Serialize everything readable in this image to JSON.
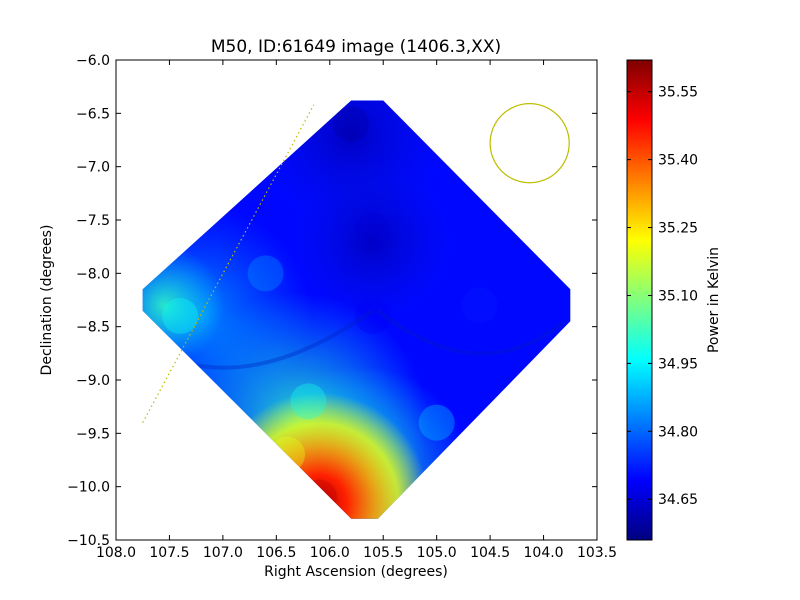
{
  "chart_data": {
    "type": "heatmap",
    "title": "M50, ID:61649 image (1406.3,XX)",
    "xlabel": "Right Ascension (degrees)",
    "ylabel": "Declination (degrees)",
    "xlim": [
      108.0,
      103.5
    ],
    "ylim": [
      -10.5,
      -6.0
    ],
    "x_ticks": [
      "108.0",
      "107.5",
      "107.0",
      "106.5",
      "106.0",
      "105.5",
      "105.0",
      "104.5",
      "104.0",
      "103.5"
    ],
    "y_ticks": [
      "−6.0",
      "−6.5",
      "−7.0",
      "−7.5",
      "−8.0",
      "−8.5",
      "−9.0",
      "−9.5",
      "−10.0",
      "−10.5"
    ],
    "colorbar": {
      "label": "Power in Kelvin",
      "range": [
        34.56,
        35.62
      ],
      "ticks": [
        "35.55",
        "35.40",
        "35.25",
        "35.10",
        "34.95",
        "34.80",
        "34.65"
      ],
      "colormap": "jet"
    },
    "map_footprint": [
      [
        105.8,
        -6.38
      ],
      [
        105.5,
        -6.38
      ],
      [
        103.75,
        -8.15
      ],
      [
        103.75,
        -8.45
      ],
      [
        105.55,
        -10.3
      ],
      [
        105.8,
        -10.3
      ],
      [
        107.75,
        -8.35
      ],
      [
        107.75,
        -8.15
      ],
      [
        105.8,
        -6.38
      ]
    ],
    "circle_marker": {
      "center": [
        104.13,
        -6.78
      ],
      "radius_deg": 0.37,
      "color": "#bdbd00"
    },
    "dotted_line": {
      "points": [
        [
          107.75,
          -9.4
        ],
        [
          106.15,
          -6.42
        ]
      ],
      "color": "#bdbd00"
    },
    "field_samples": [
      {
        "ra": 105.8,
        "dec": -6.6,
        "value": 34.6
      },
      {
        "ra": 105.6,
        "dec": -7.6,
        "value": 34.65
      },
      {
        "ra": 104.6,
        "dec": -8.3,
        "value": 34.72
      },
      {
        "ra": 105.6,
        "dec": -8.4,
        "value": 34.68
      },
      {
        "ra": 106.6,
        "dec": -8.0,
        "value": 34.85
      },
      {
        "ra": 107.4,
        "dec": -8.4,
        "value": 34.97
      },
      {
        "ra": 105.0,
        "dec": -9.4,
        "value": 34.9
      },
      {
        "ra": 106.2,
        "dec": -9.2,
        "value": 34.98
      },
      {
        "ra": 106.4,
        "dec": -9.7,
        "value": 35.2
      },
      {
        "ra": 106.1,
        "dec": -10.1,
        "value": 35.55
      }
    ]
  }
}
